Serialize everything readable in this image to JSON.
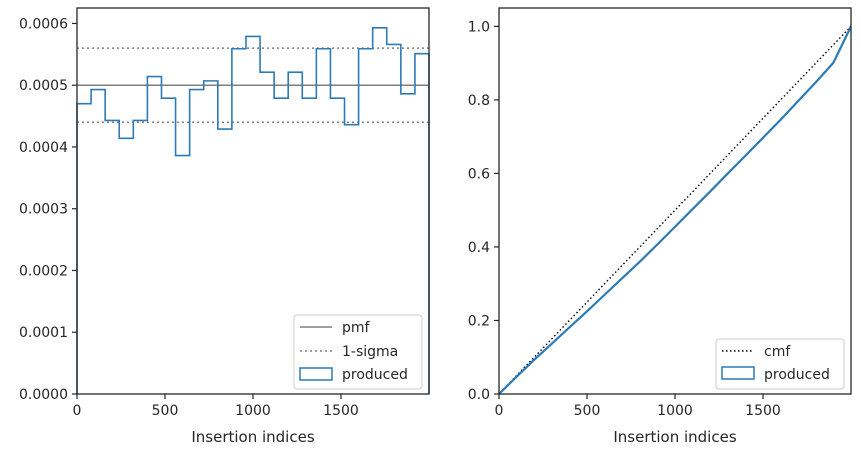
{
  "colors": {
    "produced": "#2c7bb6",
    "pmf": "#7f7f7f",
    "sigma": "#7f7f7f",
    "cmf": "#000000",
    "axes": "#262626"
  },
  "chart_data": [
    {
      "type": "histogram",
      "xlabel": "Insertion indices",
      "ylabel": "",
      "xlim": [
        0,
        2000
      ],
      "ylim": [
        0,
        0.000625
      ],
      "xticks": [
        0,
        500,
        1000,
        1500
      ],
      "xtick_labels": [
        "0",
        "500",
        "1000",
        "1500"
      ],
      "yticks": [
        0,
        0.0001,
        0.0002,
        0.0003,
        0.0004,
        0.0005,
        0.0006
      ],
      "ytick_labels": [
        "0.0000",
        "0.0001",
        "0.0002",
        "0.0003",
        "0.0004",
        "0.0005",
        "0.0006"
      ],
      "bin_edges": [
        0,
        80,
        160,
        240,
        320,
        400,
        480,
        560,
        640,
        720,
        800,
        880,
        960,
        1040,
        1120,
        1200,
        1280,
        1360,
        1440,
        1520,
        1600,
        1680,
        1760,
        1840,
        1920,
        2000
      ],
      "values": [
        0.00047,
        0.000493,
        0.000443,
        0.000414,
        0.000443,
        0.000514,
        0.000479,
        0.000386,
        0.000493,
        0.000507,
        0.000429,
        0.000559,
        0.000579,
        0.000521,
        0.000479,
        0.000521,
        0.000479,
        0.000559,
        0.000479,
        0.000436,
        0.000559,
        0.000593,
        0.000566,
        0.000486,
        0.000551
      ],
      "pmf": 0.0005,
      "sigma_lower": 0.00044,
      "sigma_upper": 0.00056,
      "legend": [
        "pmf",
        "1-sigma",
        "produced"
      ],
      "legend_placement": "lower-right",
      "grid": false
    },
    {
      "type": "line",
      "xlabel": "Insertion indices",
      "ylabel": "",
      "xlim": [
        0,
        2000
      ],
      "ylim": [
        0,
        1.05
      ],
      "xticks": [
        0,
        500,
        1000,
        1500
      ],
      "xtick_labels": [
        "0",
        "500",
        "1000",
        "1500"
      ],
      "yticks": [
        0,
        0.2,
        0.4,
        0.6,
        0.8,
        1.0
      ],
      "ytick_labels": [
        "0.0",
        "0.2",
        "0.4",
        "0.6",
        "0.8",
        "1.0"
      ],
      "series": [
        {
          "name": "cmf",
          "x": [
            0,
            2000
          ],
          "y": [
            0,
            1.0
          ]
        },
        {
          "name": "produced",
          "x": [
            0,
            100,
            200,
            300,
            400,
            500,
            600,
            700,
            800,
            900,
            1000,
            1100,
            1200,
            1300,
            1400,
            1500,
            1600,
            1700,
            1800,
            1900,
            2000
          ],
          "y": [
            0,
            0.047,
            0.093,
            0.137,
            0.181,
            0.225,
            0.27,
            0.315,
            0.36,
            0.407,
            0.455,
            0.503,
            0.551,
            0.6,
            0.648,
            0.697,
            0.746,
            0.797,
            0.848,
            0.901,
            1.0
          ]
        }
      ],
      "legend": [
        "cmf",
        "produced"
      ],
      "legend_placement": "lower-right",
      "grid": false
    }
  ]
}
